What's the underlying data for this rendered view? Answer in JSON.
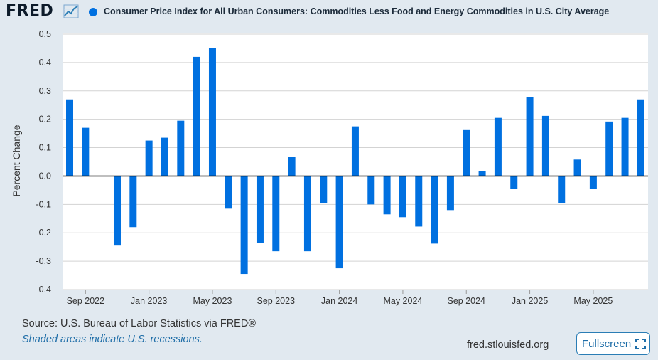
{
  "header": {
    "logo_text": "FRED",
    "logo_icon": "line-chart-icon",
    "legend_label": "Consumer Price Index for All Urban Consumers: Commodities Less Food and Energy Commodities in U.S. City Average"
  },
  "chart_data": {
    "type": "bar",
    "title": "Consumer Price Index for All Urban Consumers: Commodities Less Food and Energy Commodities in U.S. City Average",
    "xlabel": "",
    "ylabel": "Percent Change",
    "ylim": [
      -0.4,
      0.5
    ],
    "yticks": [
      0.5,
      0.4,
      0.3,
      0.2,
      0.1,
      0.0,
      -0.1,
      -0.2,
      -0.3,
      -0.4
    ],
    "ytick_labels": [
      "0.5",
      "0.4",
      "0.3",
      "0.2",
      "0.1",
      "0.0",
      "-0.1",
      "-0.2",
      "-0.3",
      "-0.4"
    ],
    "xtick_labels": [
      "Sep 2022",
      "Jan 2023",
      "May 2023",
      "Sep 2023",
      "Jan 2024",
      "May 2024",
      "Sep 2024",
      "Jan 2025",
      "May 2025"
    ],
    "xtick_categories": [
      "2022-09",
      "2023-01",
      "2023-05",
      "2023-09",
      "2024-01",
      "2024-05",
      "2024-09",
      "2025-01",
      "2025-05"
    ],
    "grid": true,
    "bar_color": "#0070e0",
    "series": [
      {
        "categories": [
          "2022-08",
          "2022-09",
          "2022-10",
          "2022-11",
          "2022-12",
          "2023-01",
          "2023-02",
          "2023-03",
          "2023-04",
          "2023-05",
          "2023-06",
          "2023-07",
          "2023-08",
          "2023-09",
          "2023-10",
          "2023-11",
          "2023-12",
          "2024-01",
          "2024-02",
          "2024-03",
          "2024-04",
          "2024-05",
          "2024-06",
          "2024-07",
          "2024-08",
          "2024-09",
          "2024-10",
          "2024-11",
          "2024-12",
          "2025-01",
          "2025-02",
          "2025-03",
          "2025-04",
          "2025-05",
          "2025-06",
          "2025-07",
          "2025-08"
        ],
        "values": [
          0.27,
          0.17,
          0.0,
          -0.245,
          -0.18,
          0.125,
          0.135,
          0.195,
          0.42,
          0.45,
          -0.115,
          -0.345,
          -0.235,
          -0.265,
          0.068,
          -0.265,
          -0.095,
          -0.325,
          0.175,
          -0.1,
          -0.135,
          -0.145,
          -0.178,
          -0.238,
          -0.12,
          0.162,
          0.018,
          0.205,
          -0.045,
          0.278,
          0.212,
          -0.095,
          0.058,
          -0.045,
          0.192,
          0.205,
          0.27
        ]
      }
    ]
  },
  "footer": {
    "source": "Source: U.S. Bureau of Labor Statistics via FRED®",
    "recession_note": "Shaded areas indicate U.S. recessions.",
    "url": "fred.stlouisfed.org",
    "fullscreen_label": "Fullscreen",
    "fullscreen_icon": "fullscreen-corners-icon"
  }
}
